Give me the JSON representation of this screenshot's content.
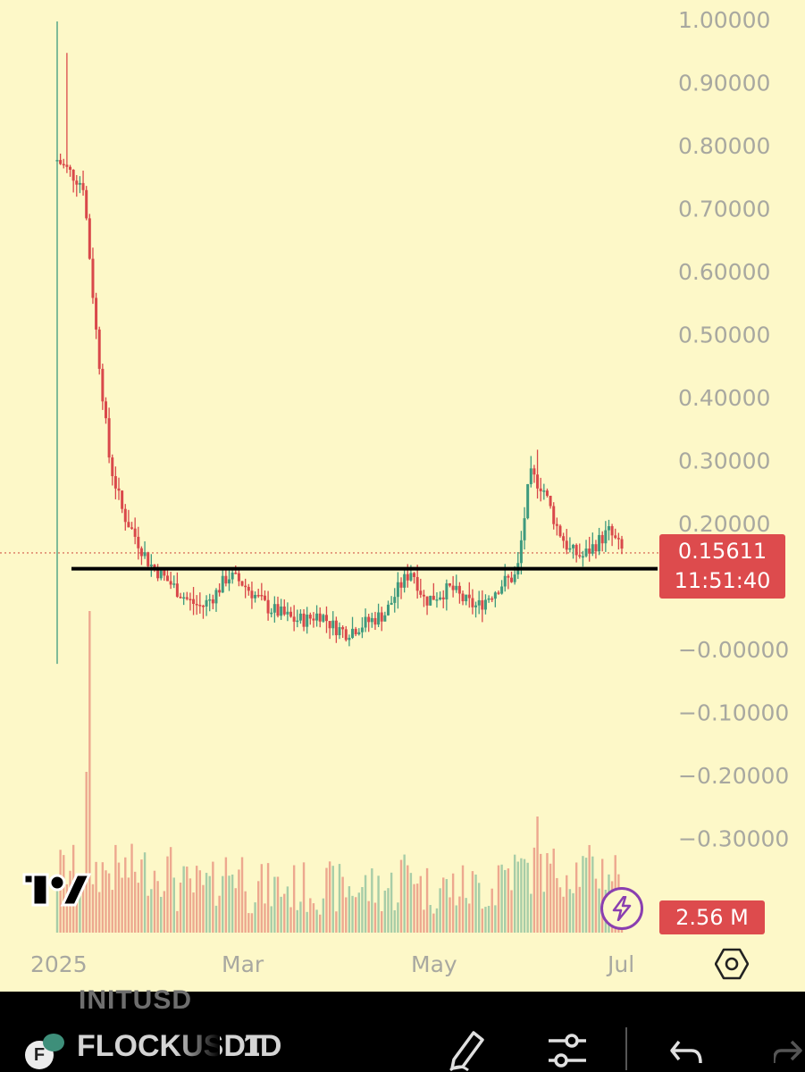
{
  "chart_data": {
    "type": "candlestick",
    "symbol": "FLOCKUSDT",
    "interval": "1D",
    "price_axis": {
      "ticks": [
        "1.00000",
        "0.90000",
        "0.80000",
        "0.70000",
        "0.60000",
        "0.50000",
        "0.40000",
        "0.30000",
        "0.20000",
        "−0.00000",
        "−0.10000",
        "−0.20000",
        "−0.30000"
      ],
      "min": -0.3,
      "max": 1.0
    },
    "time_axis": {
      "ticks": [
        "2025",
        "Mar",
        "May",
        "Jul"
      ]
    },
    "last_price": "0.15611",
    "countdown": "11:51:40",
    "last_price_value": 0.15611,
    "volume_label": "2.56 M",
    "horizontal_line_price": 0.131,
    "colors": {
      "up": "#3e9a7e",
      "down": "#d9484a",
      "background": "#fdf8c8",
      "line": "#000000"
    },
    "candles_summary": {
      "start": "2024-12-30",
      "open_high": 0.95,
      "low_start": -0.02,
      "trend_closes": [
        0.78,
        0.76,
        0.74,
        0.5,
        0.3,
        0.22,
        0.18,
        0.14,
        0.12,
        0.1,
        0.08,
        0.07,
        0.09,
        0.12,
        0.11,
        0.09,
        0.07,
        0.06,
        0.05,
        0.05,
        0.06,
        0.04,
        0.03,
        0.04,
        0.05,
        0.06,
        0.1,
        0.13,
        0.08,
        0.09,
        0.1,
        0.08,
        0.07,
        0.09,
        0.11,
        0.12,
        0.28,
        0.26,
        0.2,
        0.16,
        0.15,
        0.17,
        0.19,
        0.16
      ]
    }
  },
  "ui": {
    "previous_symbol": "INITUSD",
    "symbol": "FLOCKUSDT",
    "interval": "1D",
    "coin_letter": "F",
    "icons": [
      "tradingview-logo-icon",
      "flash-icon",
      "settings-icon",
      "pencil-icon",
      "sliders-icon",
      "undo-icon",
      "redo-icon"
    ]
  }
}
